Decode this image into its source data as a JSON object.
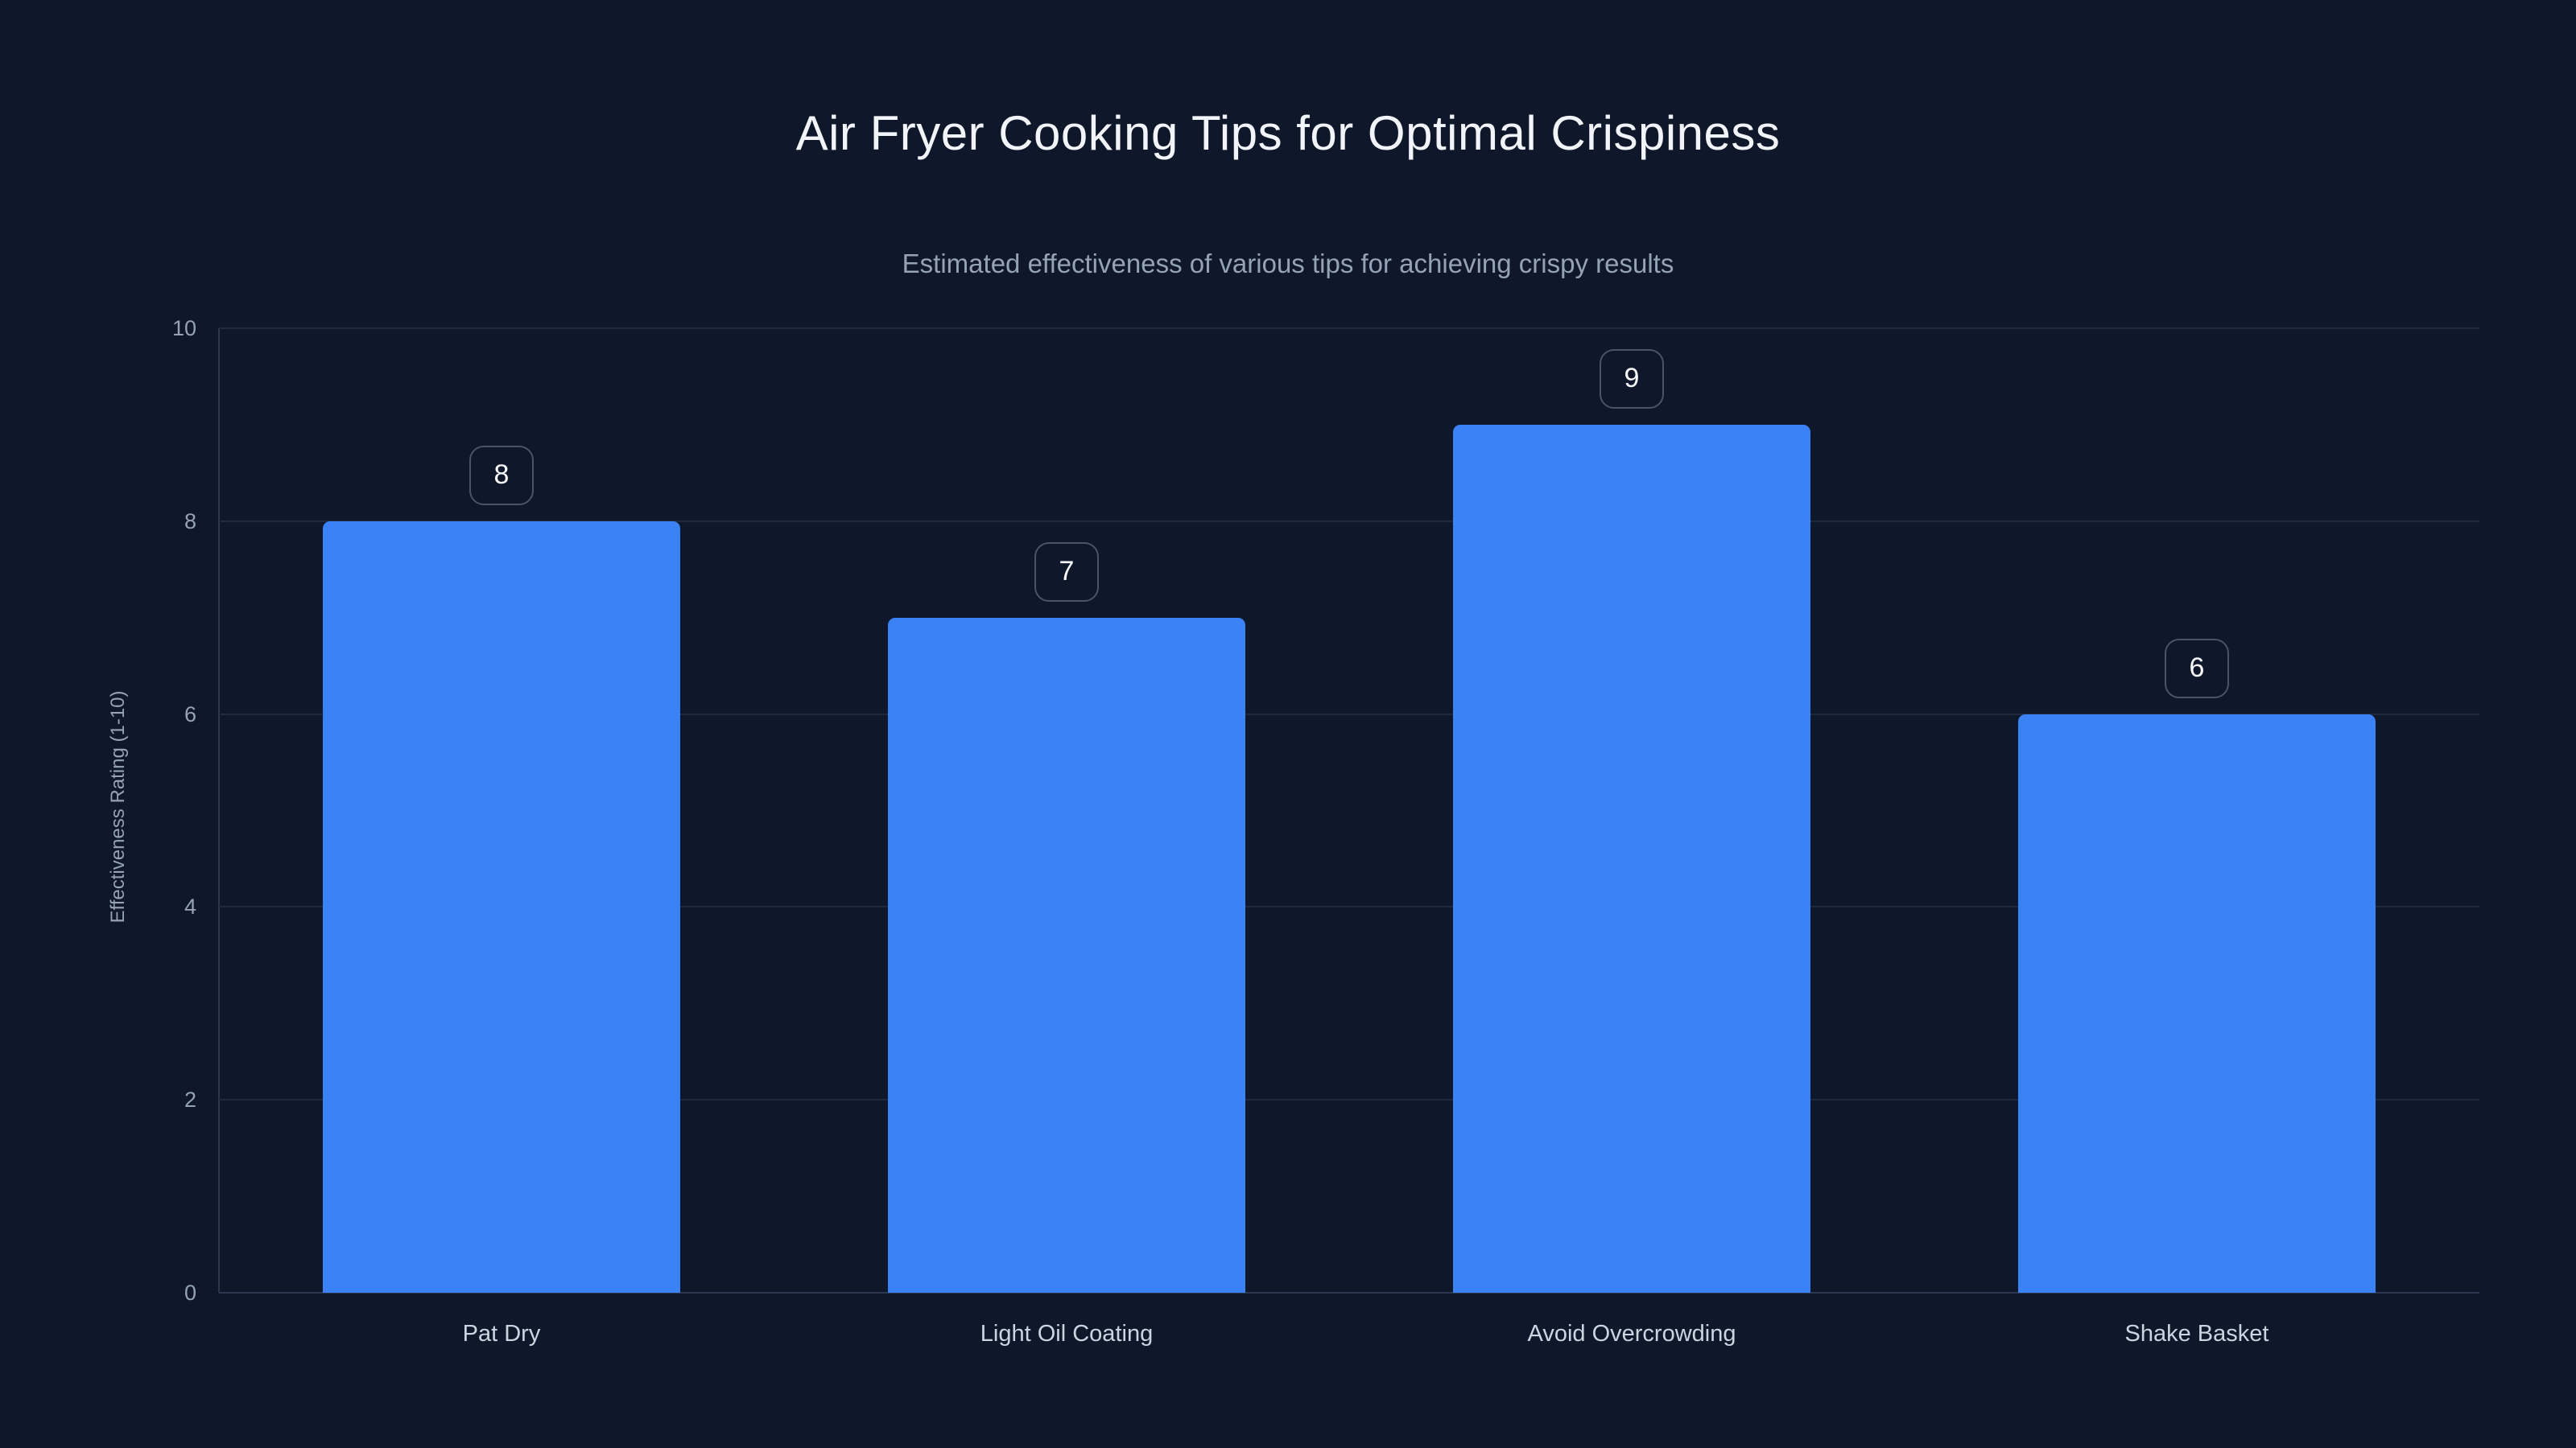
{
  "chart_data": {
    "type": "bar",
    "title": "Air Fryer Cooking Tips for Optimal Crispiness",
    "subtitle": "Estimated effectiveness of various tips for achieving crispy results",
    "categories": [
      "Pat Dry",
      "Light Oil Coating",
      "Avoid Overcrowding",
      "Shake Basket"
    ],
    "values": [
      8,
      7,
      9,
      6
    ],
    "value_labels": [
      "8",
      "7",
      "9",
      "6"
    ],
    "xlabel": "",
    "ylabel": "Effectiveness Rating (1-10)",
    "ylim": [
      0,
      10
    ],
    "yticks": [
      0,
      2,
      4,
      6,
      8,
      10
    ],
    "ytick_labels": [
      "0",
      "2",
      "4",
      "6",
      "8",
      "10"
    ],
    "grid": true,
    "legend": false,
    "colors": {
      "background": "#0f172a",
      "bar": "#3b82f6",
      "title_text": "#f1f5f9",
      "subtitle_text": "#94a3b8",
      "tick_text": "#94a3b8",
      "category_text": "#cbd5e1",
      "gridline": "#1f2a40",
      "axis_line": "#2c3850",
      "badge_border": "#475569",
      "badge_text": "#f8fafc"
    }
  }
}
